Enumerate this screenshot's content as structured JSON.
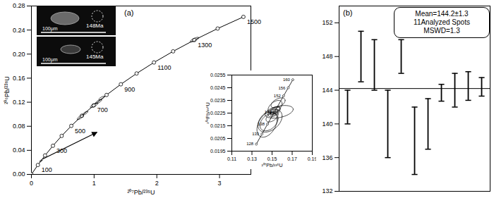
{
  "chart_data": [
    {
      "type": "concordia",
      "panel_label": "(a)",
      "x_label": "²⁰⁷Pb/²³⁵U",
      "y_label": "²⁰⁶Pb/²³⁸U",
      "xlim": [
        0,
        3.5
      ],
      "xticks": [
        0,
        1,
        2,
        3
      ],
      "ylim": [
        0,
        0.28
      ],
      "yticks": [
        {
          "value": 0,
          "label": "0.00"
        },
        {
          "value": 0.04,
          "label": "0.04"
        },
        {
          "value": 0.08,
          "label": "0.08"
        },
        {
          "value": 0.12,
          "label": "0.12"
        },
        {
          "value": 0.16,
          "label": "0.16"
        },
        {
          "value": 0.2,
          "label": "0.20"
        },
        {
          "value": 0.24,
          "label": "0.24"
        },
        {
          "value": 0.28,
          "label": "0.28"
        }
      ],
      "concordia": {
        "x": [
          0,
          0.1034,
          0.2177,
          0.3437,
          0.4828,
          0.6363,
          0.8056,
          0.9925,
          1.1987,
          1.4264,
          1.6774,
          1.9546,
          2.2602,
          2.5979,
          2.9702,
          3.3811
        ],
        "values": [
          0,
          0.01563,
          0.03151,
          0.04764,
          0.06402,
          0.08066,
          0.09755,
          0.1147,
          0.1321,
          0.1498,
          0.1678,
          0.1861,
          0.2046,
          0.2234,
          0.2425,
          0.2619
        ],
        "labels": [
          null,
          "100",
          null,
          "300",
          null,
          "500",
          null,
          "700",
          null,
          "900",
          null,
          "1100",
          null,
          "1300",
          null,
          "1500"
        ]
      },
      "ellipses": [
        {
          "x": 0.152,
          "y": 0.0226,
          "sx": 0.02,
          "sy": 0.0015,
          "rho": 0.6
        },
        {
          "x": 0.78,
          "y": 0.095,
          "sx": 0.05,
          "sy": 0.004,
          "rho": 0.8
        },
        {
          "x": 0.86,
          "y": 0.102,
          "sx": 0.04,
          "sy": 0.003,
          "rho": 0.8
        },
        {
          "x": 1.0,
          "y": 0.115,
          "sx": 0.06,
          "sy": 0.004,
          "rho": 0.8
        },
        {
          "x": 1.07,
          "y": 0.121,
          "sx": 0.05,
          "sy": 0.0035,
          "rho": 0.8
        },
        {
          "x": 1.12,
          "y": 0.127,
          "sx": 0.045,
          "sy": 0.003,
          "rho": 0.8
        },
        {
          "x": 2.6,
          "y": 0.224,
          "sx": 0.07,
          "sy": 0.004,
          "rho": 0.8
        }
      ],
      "images": [
        {
          "label": "148Ma",
          "scale_label": "100μm"
        },
        {
          "label": "145Ma",
          "scale_label": "100μm"
        }
      ],
      "inset": {
        "x_label": "²⁰⁷Pb/²³⁵U",
        "y_label": "²⁰⁶Pb/²³⁸U",
        "xlim": [
          0.11,
          0.19
        ],
        "xticks": [
          0.11,
          0.13,
          0.15,
          0.17,
          0.19
        ],
        "ylim": [
          0.0195,
          0.0255
        ],
        "yticks": [
          0.0195,
          0.0205,
          0.0215,
          0.0225,
          0.0235,
          0.0245,
          0.0255
        ],
        "concordia": {
          "x": [
            0.13435,
            0.13995,
            0.14557,
            0.15237,
            0.16148,
            0.16607,
            0.17067
          ],
          "values": [
            0.020054,
            0.020846,
            0.021638,
            0.022589,
            0.023859,
            0.024495,
            0.025131
          ],
          "labels": [
            "128",
            "133",
            "138",
            "144",
            "152",
            "156",
            "160"
          ]
        },
        "ellipses": [
          {
            "x": 0.15,
            "y": 0.0222,
            "sx": 0.006,
            "sy": 0.0004,
            "rho": 0.5
          },
          {
            "x": 0.157,
            "y": 0.0226,
            "sx": 0.014,
            "sy": 0.0005,
            "rho": 0.4
          },
          {
            "x": 0.153,
            "y": 0.023,
            "sx": 0.007,
            "sy": 0.0005,
            "rho": 0.5
          },
          {
            "x": 0.148,
            "y": 0.0219,
            "sx": 0.012,
            "sy": 0.0009,
            "rho": 0.4
          },
          {
            "x": 0.156,
            "y": 0.0233,
            "sx": 0.007,
            "sy": 0.0004,
            "rho": 0.5
          },
          {
            "x": 0.145,
            "y": 0.0216,
            "sx": 0.01,
            "sy": 0.001,
            "rho": 0.4
          },
          {
            "x": 0.147,
            "y": 0.0218,
            "sx": 0.009,
            "sy": 0.0007,
            "rho": 0.4
          },
          {
            "x": 0.152,
            "y": 0.0225,
            "sx": 0.004,
            "sy": 0.0002,
            "rho": 0.6
          },
          {
            "x": 0.152,
            "y": 0.0226,
            "sx": 0.006,
            "sy": 0.0004,
            "rho": 0.5
          },
          {
            "x": 0.153,
            "y": 0.0227,
            "sx": 0.005,
            "sy": 0.0003,
            "rho": 0.6
          },
          {
            "x": 0.152,
            "y": 0.0226,
            "sx": 0.004,
            "sy": 0.0002,
            "rho": 0.6
          }
        ]
      }
    },
    {
      "type": "error_bar",
      "panel_label": "(b)",
      "categories": [
        null,
        null,
        null,
        null,
        null,
        null,
        null,
        null,
        null,
        null,
        null
      ],
      "values": [
        142,
        148,
        147,
        140,
        148,
        138,
        140,
        143.7,
        144,
        144.5,
        144.4
      ],
      "errors": [
        2,
        3,
        3,
        4,
        2,
        4,
        3,
        1,
        2,
        1.7,
        1.1
      ],
      "mean": 144.2,
      "annotations": [
        "Mean=144.2±1.3",
        "11Analyzed Spots",
        "MSWD=1.3"
      ],
      "ylim": [
        132,
        154
      ],
      "yticks": [
        132,
        136,
        140,
        144,
        148,
        152
      ],
      "tick_labels": "y"
    }
  ]
}
